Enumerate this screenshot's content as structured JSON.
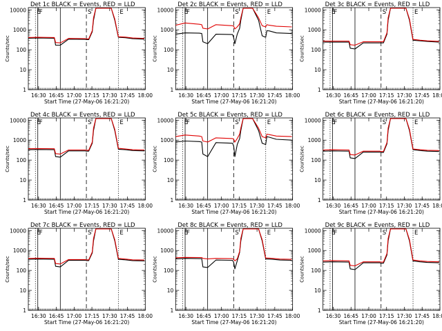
{
  "figure": {
    "ylabel": "Counts/sec",
    "xlabel": "Start Time (27-May-06 16:21:20)",
    "colors": {
      "events": "#000000",
      "lld": "#e00000",
      "axes": "#000000",
      "background": "#ffffff"
    },
    "xticks": [
      "16:30",
      "16:45",
      "17:00",
      "17:15",
      "17:30",
      "17:45",
      "18:00"
    ],
    "yticks": [
      "1",
      "10",
      "100",
      "1000",
      "10000"
    ],
    "markers": [
      {
        "label": "E",
        "t": 6.0,
        "style": "dotted"
      },
      {
        "label": "F",
        "t": 8.0,
        "style": "solid"
      },
      {
        "label": "",
        "t": 27.0,
        "style": "solid"
      },
      {
        "label": "S",
        "t": 49.0,
        "style": "dashed"
      },
      {
        "label": "E",
        "t": 76.0,
        "style": "dotted"
      }
    ]
  },
  "chart_data": [
    {
      "type": "line",
      "title": "Det 1c BLACK = Events, RED = LLD",
      "xlabel": "Start Time (27-May-06 16:21:20)",
      "ylabel": "Counts/sec",
      "yscale": "log",
      "ylim": [
        1,
        13000
      ],
      "xlim_minutes_from_start": [
        0,
        98.7
      ],
      "series": [
        {
          "name": "Events",
          "color": "#000000",
          "x": [
            0,
            8,
            22,
            23,
            27,
            34,
            48,
            49,
            51,
            54,
            55,
            57,
            65,
            70,
            73,
            76,
            82,
            88,
            98
          ],
          "y": [
            380,
            390,
            380,
            170,
            170,
            340,
            330,
            320,
            320,
            800,
            3000,
            12000,
            12000,
            12000,
            3000,
            420,
            400,
            360,
            340
          ]
        },
        {
          "name": "LLD",
          "color": "#e00000",
          "x": [
            0,
            8,
            22,
            23,
            27,
            34,
            48,
            49,
            51,
            54,
            55,
            57,
            65,
            70,
            73,
            76,
            82,
            88,
            98
          ],
          "y": [
            410,
            420,
            410,
            230,
            220,
            370,
            360,
            350,
            350,
            900,
            4000,
            12000,
            12000,
            12000,
            3500,
            450,
            430,
            390,
            370
          ]
        }
      ]
    },
    {
      "type": "line",
      "title": "Det 2c BLACK = Events, RED = LLD",
      "xlabel": "Start Time (27-May-06 16:21:20)",
      "ylabel": "Counts/sec",
      "yscale": "log",
      "ylim": [
        1,
        13000
      ],
      "xlim_minutes_from_start": [
        0,
        98.7
      ],
      "series": [
        {
          "name": "Events",
          "color": "#000000",
          "x": [
            0,
            8,
            20,
            22,
            23,
            27,
            34,
            48,
            49,
            50,
            52,
            54,
            55,
            57,
            62,
            65,
            70,
            73,
            76,
            77,
            79,
            85,
            98
          ],
          "y": [
            600,
            700,
            680,
            650,
            250,
            200,
            600,
            580,
            400,
            200,
            600,
            1200,
            3000,
            12000,
            12000,
            12000,
            3000,
            500,
            420,
            900,
            880,
            700,
            650
          ]
        },
        {
          "name": "LLD",
          "color": "#e00000",
          "x": [
            0,
            8,
            20,
            22,
            23,
            27,
            34,
            48,
            49,
            50,
            52,
            54,
            55,
            57,
            62,
            65,
            70,
            73,
            76,
            77,
            79,
            85,
            98
          ],
          "y": [
            1700,
            2200,
            1900,
            1800,
            1200,
            1100,
            1800,
            1600,
            1500,
            1100,
            1400,
            2000,
            4000,
            12000,
            12000,
            12000,
            4000,
            1600,
            1400,
            1800,
            1700,
            1500,
            1400
          ]
        }
      ]
    },
    {
      "type": "line",
      "title": "Det 3c BLACK = Events, RED = LLD",
      "xlabel": "Start Time (27-May-06 16:21:20)",
      "ylabel": "Counts/sec",
      "yscale": "log",
      "ylim": [
        1,
        13000
      ],
      "xlim_minutes_from_start": [
        0,
        98.7
      ],
      "series": [
        {
          "name": "Events",
          "color": "#000000",
          "x": [
            0,
            8,
            22,
            23,
            27,
            34,
            48,
            49,
            51,
            54,
            55,
            57,
            65,
            70,
            73,
            76,
            82,
            88,
            98
          ],
          "y": [
            240,
            240,
            240,
            120,
            110,
            220,
            220,
            220,
            220,
            600,
            3000,
            12000,
            12000,
            12000,
            3000,
            300,
            280,
            260,
            240
          ]
        },
        {
          "name": "LLD",
          "color": "#e00000",
          "x": [
            0,
            8,
            22,
            23,
            27,
            34,
            48,
            49,
            51,
            54,
            55,
            57,
            65,
            70,
            73,
            76,
            82,
            88,
            98
          ],
          "y": [
            270,
            270,
            270,
            180,
            170,
            250,
            250,
            250,
            250,
            700,
            4000,
            12000,
            12000,
            12000,
            3500,
            330,
            300,
            280,
            260
          ]
        }
      ]
    },
    {
      "type": "line",
      "title": "Det 4c BLACK = Events, RED = LLD",
      "xlabel": "Start Time (27-May-06 16:21:20)",
      "ylabel": "Counts/sec",
      "yscale": "log",
      "ylim": [
        1,
        13000
      ],
      "xlim_minutes_from_start": [
        0,
        98.7
      ],
      "series": [
        {
          "name": "Events",
          "color": "#000000",
          "x": [
            0,
            8,
            22,
            23,
            27,
            34,
            48,
            49,
            51,
            54,
            55,
            57,
            65,
            70,
            73,
            76,
            82,
            88,
            98
          ],
          "y": [
            330,
            340,
            330,
            150,
            140,
            290,
            290,
            280,
            280,
            700,
            3000,
            12000,
            12000,
            12000,
            3000,
            350,
            330,
            300,
            290
          ]
        },
        {
          "name": "LLD",
          "color": "#e00000",
          "x": [
            0,
            8,
            22,
            23,
            27,
            34,
            48,
            49,
            51,
            54,
            55,
            57,
            65,
            70,
            73,
            76,
            82,
            88,
            98
          ],
          "y": [
            370,
            380,
            370,
            210,
            200,
            320,
            320,
            310,
            310,
            800,
            4000,
            12000,
            12000,
            12000,
            3500,
            390,
            360,
            330,
            320
          ]
        }
      ]
    },
    {
      "type": "line",
      "title": "Det 5c BLACK = Events, RED = LLD",
      "xlabel": "Start Time (27-May-06 16:21:20)",
      "ylabel": "Counts/sec",
      "yscale": "log",
      "ylim": [
        1,
        13000
      ],
      "xlim_minutes_from_start": [
        0,
        98.7
      ],
      "series": [
        {
          "name": "Events",
          "color": "#000000",
          "x": [
            0,
            8,
            20,
            22,
            23,
            27,
            34,
            48,
            49,
            50,
            52,
            54,
            55,
            57,
            62,
            65,
            70,
            73,
            76,
            77,
            79,
            85,
            98
          ],
          "y": [
            800,
            900,
            850,
            800,
            200,
            150,
            750,
            700,
            500,
            150,
            600,
            1200,
            3000,
            12000,
            12000,
            12000,
            3000,
            700,
            600,
            1500,
            1400,
            1100,
            1000
          ]
        },
        {
          "name": "LLD",
          "color": "#e00000",
          "x": [
            0,
            8,
            20,
            22,
            23,
            27,
            34,
            48,
            49,
            50,
            52,
            54,
            55,
            57,
            62,
            65,
            70,
            73,
            76,
            77,
            79,
            85,
            98
          ],
          "y": [
            1500,
            1800,
            1600,
            1500,
            900,
            800,
            1300,
            1200,
            1100,
            800,
            1200,
            2000,
            4000,
            12000,
            12000,
            12000,
            4000,
            1500,
            1300,
            2000,
            1900,
            1600,
            1500
          ]
        }
      ]
    },
    {
      "type": "line",
      "title": "Det 6c BLACK = Events, RED = LLD",
      "xlabel": "Start Time (27-May-06 16:21:20)",
      "ylabel": "Counts/sec",
      "yscale": "log",
      "ylim": [
        1,
        13000
      ],
      "xlim_minutes_from_start": [
        0,
        98.7
      ],
      "series": [
        {
          "name": "Events",
          "color": "#000000",
          "x": [
            0,
            8,
            22,
            23,
            27,
            34,
            48,
            49,
            51,
            54,
            55,
            57,
            65,
            70,
            73,
            76,
            82,
            88,
            98
          ],
          "y": [
            280,
            290,
            280,
            130,
            120,
            250,
            250,
            240,
            240,
            650,
            3000,
            12000,
            12000,
            12000,
            3000,
            330,
            300,
            280,
            270
          ]
        },
        {
          "name": "LLD",
          "color": "#e00000",
          "x": [
            0,
            8,
            22,
            23,
            27,
            34,
            48,
            49,
            51,
            54,
            55,
            57,
            65,
            70,
            73,
            76,
            82,
            88,
            98
          ],
          "y": [
            320,
            330,
            320,
            190,
            180,
            280,
            280,
            270,
            270,
            750,
            4000,
            12000,
            12000,
            12000,
            3500,
            360,
            330,
            310,
            300
          ]
        }
      ]
    },
    {
      "type": "line",
      "title": "Det 7c BLACK = Events, RED = LLD",
      "xlabel": "Start Time (27-May-06 16:21:20)",
      "ylabel": "Counts/sec",
      "yscale": "log",
      "ylim": [
        1,
        13000
      ],
      "xlim_minutes_from_start": [
        0,
        98.7
      ],
      "series": [
        {
          "name": "Events",
          "color": "#000000",
          "x": [
            0,
            8,
            22,
            23,
            27,
            34,
            48,
            49,
            51,
            54,
            55,
            57,
            65,
            70,
            73,
            76,
            82,
            88,
            98
          ],
          "y": [
            360,
            370,
            360,
            160,
            150,
            320,
            320,
            310,
            310,
            750,
            3000,
            12000,
            12000,
            12000,
            3000,
            360,
            340,
            310,
            300
          ]
        },
        {
          "name": "LLD",
          "color": "#e00000",
          "x": [
            0,
            8,
            22,
            23,
            27,
            34,
            48,
            49,
            51,
            54,
            55,
            57,
            65,
            70,
            73,
            76,
            82,
            88,
            98
          ],
          "y": [
            400,
            410,
            400,
            220,
            210,
            350,
            350,
            340,
            340,
            850,
            4000,
            12000,
            12000,
            12000,
            3500,
            400,
            370,
            340,
            330
          ]
        }
      ]
    },
    {
      "type": "line",
      "title": "Det 8c BLACK = Events, RED = LLD",
      "xlabel": "Start Time (27-May-06 16:21:20)",
      "ylabel": "Counts/sec",
      "yscale": "log",
      "ylim": [
        1,
        13000
      ],
      "xlim_minutes_from_start": [
        0,
        98.7
      ],
      "series": [
        {
          "name": "Events",
          "color": "#000000",
          "x": [
            0,
            8,
            22,
            23,
            27,
            34,
            48,
            49,
            50,
            52,
            54,
            55,
            57,
            65,
            70,
            73,
            76,
            82,
            88,
            98
          ],
          "y": [
            380,
            400,
            390,
            150,
            140,
            330,
            320,
            250,
            120,
            300,
            800,
            3000,
            12000,
            12000,
            12000,
            3000,
            380,
            360,
            330,
            320
          ]
        },
        {
          "name": "LLD",
          "color": "#e00000",
          "x": [
            0,
            8,
            22,
            23,
            27,
            34,
            48,
            49,
            50,
            52,
            54,
            55,
            57,
            65,
            70,
            73,
            76,
            82,
            88,
            98
          ],
          "y": [
            430,
            450,
            440,
            400,
            380,
            400,
            390,
            360,
            300,
            380,
            900,
            4000,
            12000,
            12000,
            12000,
            3500,
            420,
            400,
            370,
            360
          ]
        }
      ]
    },
    {
      "type": "line",
      "title": "Det 9c BLACK = Events, RED = LLD",
      "xlabel": "Start Time (27-May-06 16:21:20)",
      "ylabel": "Counts/sec",
      "yscale": "log",
      "ylim": [
        1,
        13000
      ],
      "xlim_minutes_from_start": [
        0,
        98.7
      ],
      "series": [
        {
          "name": "Events",
          "color": "#000000",
          "x": [
            0,
            8,
            22,
            23,
            27,
            34,
            48,
            49,
            51,
            54,
            55,
            57,
            65,
            70,
            73,
            76,
            82,
            88,
            98
          ],
          "y": [
            260,
            270,
            260,
            120,
            110,
            240,
            240,
            230,
            230,
            600,
            3000,
            12000,
            12000,
            12000,
            3000,
            300,
            270,
            250,
            240
          ]
        },
        {
          "name": "LLD",
          "color": "#e00000",
          "x": [
            0,
            8,
            22,
            23,
            27,
            34,
            48,
            49,
            51,
            54,
            55,
            57,
            65,
            70,
            73,
            76,
            82,
            88,
            98
          ],
          "y": [
            300,
            310,
            300,
            180,
            170,
            270,
            270,
            260,
            260,
            700,
            4000,
            12000,
            12000,
            12000,
            3500,
            330,
            300,
            280,
            270
          ]
        }
      ]
    }
  ]
}
